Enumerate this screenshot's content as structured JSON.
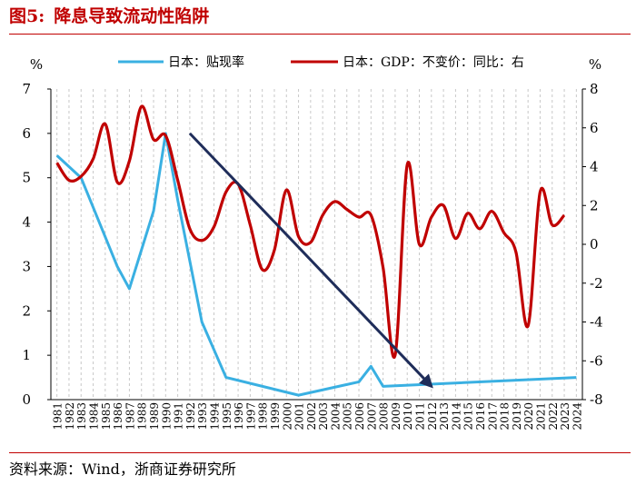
{
  "figure": {
    "label": "图5:",
    "title": "降息导致流动性陷阱",
    "source": "资料来源：Wind，浙商证券研究所"
  },
  "chart_data": {
    "type": "line",
    "x": [
      "1981",
      "1982",
      "1983",
      "1984",
      "1985",
      "1986",
      "1987",
      "1988",
      "1989",
      "1990",
      "1991",
      "1992",
      "1993",
      "1994",
      "1995",
      "1996",
      "1997",
      "1998",
      "1999",
      "2000",
      "2001",
      "2002",
      "2003",
      "2004",
      "2005",
      "2006",
      "2007",
      "2008",
      "2009",
      "2010",
      "2011",
      "2012",
      "2013",
      "2014",
      "2015",
      "2016",
      "2017",
      "2018",
      "2019",
      "2020",
      "2021",
      "2022",
      "2023",
      "2024"
    ],
    "y_left": {
      "unit": "%",
      "ylim": [
        0,
        7
      ],
      "ticks": [
        "0",
        "1",
        "2",
        "3",
        "4",
        "5",
        "6",
        "7"
      ]
    },
    "y_right": {
      "unit": "%",
      "ylim": [
        -8,
        8
      ],
      "ticks": [
        "-8",
        "-6",
        "-4",
        "-2",
        "0",
        "2",
        "4",
        "6",
        "8"
      ]
    },
    "series": [
      {
        "name": "日本：贴现率",
        "axis": "left",
        "color": "#3ab0e2",
        "points": [
          [
            "1981",
            5.5
          ],
          [
            "1983",
            5.0
          ],
          [
            "1986",
            3.0
          ],
          [
            "1987",
            2.5
          ],
          [
            "1989",
            4.25
          ],
          [
            "1990",
            6.0
          ],
          [
            "1991",
            4.5
          ],
          [
            "1993",
            1.75
          ],
          [
            "1995",
            0.5
          ],
          [
            "2001",
            0.1
          ],
          [
            "2006",
            0.4
          ],
          [
            "2007",
            0.75
          ],
          [
            "2008",
            0.3
          ],
          [
            "2024",
            0.5
          ]
        ]
      },
      {
        "name": "日本：GDP：不变价：同比：右",
        "axis": "right",
        "color": "#c00000",
        "values": [
          4.2,
          3.3,
          3.5,
          4.4,
          6.2,
          3.2,
          4.3,
          7.1,
          5.4,
          5.6,
          3.3,
          0.8,
          0.2,
          0.9,
          2.7,
          3.1,
          1.0,
          -1.3,
          -0.3,
          2.8,
          0.4,
          0.1,
          1.5,
          2.2,
          1.8,
          1.4,
          1.5,
          -1.2,
          -5.7,
          4.1,
          0.0,
          1.4,
          2.0,
          0.3,
          1.6,
          0.8,
          1.7,
          0.6,
          -0.4,
          -4.2,
          2.7,
          1.0,
          1.5,
          null
        ]
      }
    ],
    "annotation": {
      "type": "arrow",
      "color": "#1f2d5a",
      "from": [
        "1992",
        6.0
      ],
      "to": [
        "2012",
        0.3
      ],
      "axis": "left"
    },
    "grid": {
      "vertical": "dashed",
      "horizontal": false
    },
    "legend": {
      "position": "top"
    }
  }
}
